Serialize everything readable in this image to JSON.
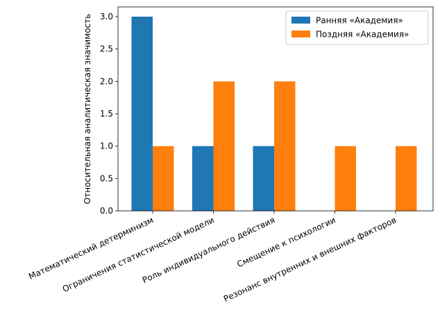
{
  "chart_data": {
    "type": "bar",
    "title": "",
    "xlabel": "",
    "ylabel": "Относительная аналитическая значимость",
    "categories": [
      "Математический детерминизм",
      "Ограничения статистической модели",
      "Роль индивидуального действия",
      "Смещение к психологии",
      "Резонанс внутренних и внешних факторов"
    ],
    "series": [
      {
        "name": "Ранняя «Академия»",
        "color": "#1f77b4",
        "values": [
          3,
          1,
          1,
          0,
          0
        ]
      },
      {
        "name": "Поздняя «Академия»",
        "color": "#ff7f0e",
        "values": [
          1,
          2,
          2,
          1,
          1
        ]
      }
    ],
    "ylim": [
      0,
      3.15
    ],
    "yticks": [
      0.0,
      0.5,
      1.0,
      1.5,
      2.0,
      2.5,
      3.0
    ],
    "grid": false,
    "legend_position": "top-right"
  }
}
